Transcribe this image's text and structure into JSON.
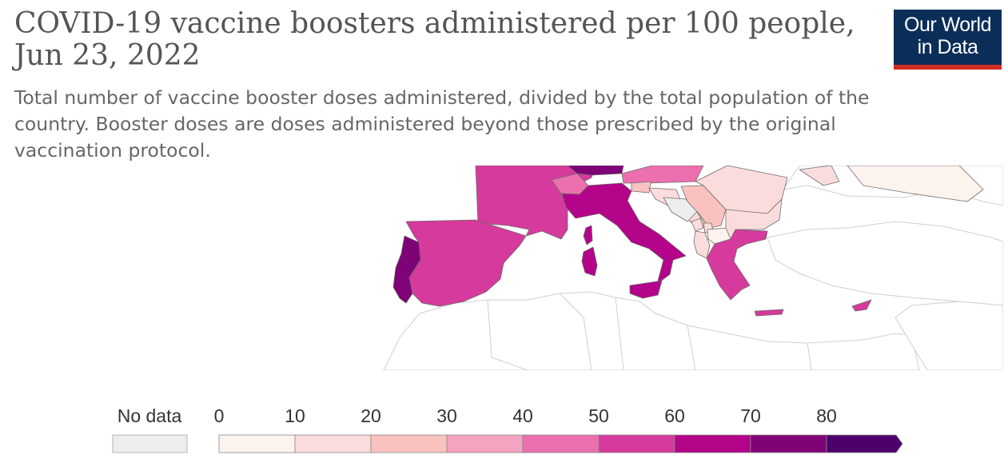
{
  "header": {
    "title": "COVID-19 vaccine boosters administered per 100 people, Jun 23, 2022",
    "subtitle": "Total number of vaccine booster doses administered, divided by the total population of the country. Booster doses are doses administered beyond those prescribed by the original vaccination protocol.",
    "logo_line1": "Our World",
    "logo_line2": "in Data"
  },
  "legend": {
    "no_data_label": "No data",
    "no_data_color": "#ededed",
    "ticks": [
      "0",
      "10",
      "20",
      "30",
      "40",
      "50",
      "60",
      "70",
      "80"
    ],
    "bins": [
      {
        "min": 0,
        "max": 10,
        "color": "#fcf3ef"
      },
      {
        "min": 10,
        "max": 20,
        "color": "#fbdcdc"
      },
      {
        "min": 20,
        "max": 30,
        "color": "#f9c2be"
      },
      {
        "min": 30,
        "max": 40,
        "color": "#f4a3c0"
      },
      {
        "min": 40,
        "max": 50,
        "color": "#ec6fae"
      },
      {
        "min": 50,
        "max": 60,
        "color": "#d53a9c"
      },
      {
        "min": 60,
        "max": 70,
        "color": "#b3048a"
      },
      {
        "min": 70,
        "max": 80,
        "color": "#7f0277"
      },
      {
        "min": 80,
        "max": null,
        "color": "#4d006b"
      }
    ]
  },
  "map": {
    "countries": [
      {
        "name": "Portugal",
        "bin": 7
      },
      {
        "name": "Spain",
        "bin": 5
      },
      {
        "name": "France",
        "bin": 5
      },
      {
        "name": "Switzerland",
        "bin": 4
      },
      {
        "name": "Germany",
        "bin": 7
      },
      {
        "name": "Italy",
        "bin": 6
      },
      {
        "name": "Austria",
        "bin": 4
      },
      {
        "name": "Slovenia",
        "bin": 2
      },
      {
        "name": "Hungary",
        "bin": 4
      },
      {
        "name": "Croatia",
        "bin": 1
      },
      {
        "name": "Bosnia and Herzegovina",
        "bin": -1
      },
      {
        "name": "Serbia",
        "bin": 2
      },
      {
        "name": "Romania",
        "bin": 1
      },
      {
        "name": "Montenegro",
        "bin": 1
      },
      {
        "name": "Kosovo",
        "bin": 1
      },
      {
        "name": "Albania",
        "bin": 1
      },
      {
        "name": "North Macedonia",
        "bin": 0
      },
      {
        "name": "Bulgaria",
        "bin": 1
      },
      {
        "name": "Greece",
        "bin": 5
      },
      {
        "name": "Cyprus",
        "bin": 5
      },
      {
        "name": "Ukraine",
        "bin": 0
      },
      {
        "name": "Moldova",
        "bin": 1
      }
    ]
  }
}
